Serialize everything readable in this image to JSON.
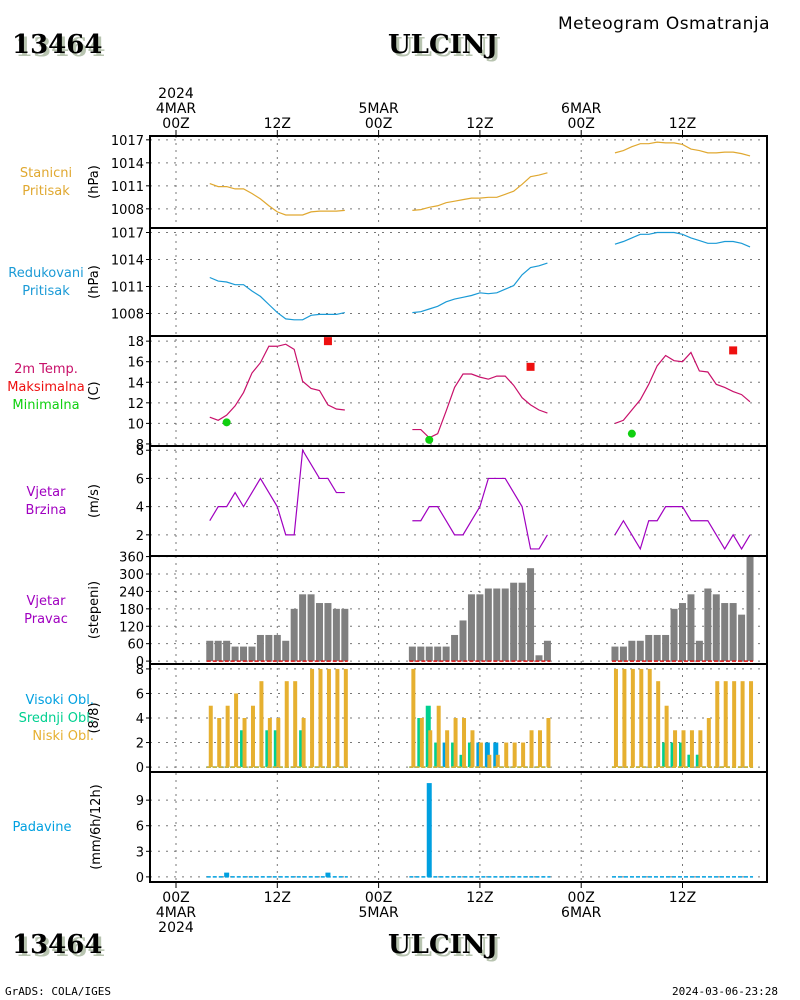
{
  "header": {
    "station_id": "13464",
    "station_name": "ULCINJ",
    "subtitle": "Meteogram Osmatranja"
  },
  "footer": {
    "station_id": "13464",
    "station_name": "ULCINJ",
    "credit": "GrADS: COLA/IGES",
    "timestamp": "2024-03-06-23:28"
  },
  "colors": {
    "station_pressure": "#e0a830",
    "reduced_pressure": "#1a9ad6",
    "temperature": "#c8106a",
    "tmax": "#ee1010",
    "tmin": "#10d010",
    "wind_speed": "#a000c0",
    "wind_dir": "#808080",
    "high_cloud": "#00a0e0",
    "mid_cloud": "#00d090",
    "low_cloud": "#e6b030",
    "precip": "#00a0e0"
  },
  "chart_data": {
    "type": "line",
    "title": "Meteogram Osmatranja",
    "x_unit": "hours since 2024-03-04 00Z",
    "x_range": [
      -3,
      70
    ],
    "top_ticks": [
      {
        "hour": 0,
        "lines": [
          "2024",
          "4MAR",
          "00Z"
        ]
      },
      {
        "hour": 12,
        "lines": [
          "12Z"
        ]
      },
      {
        "hour": 24,
        "lines": [
          "5MAR",
          "00Z"
        ]
      },
      {
        "hour": 36,
        "lines": [
          "12Z"
        ]
      },
      {
        "hour": 48,
        "lines": [
          "6MAR",
          "00Z"
        ]
      },
      {
        "hour": 60,
        "lines": [
          "12Z"
        ]
      }
    ],
    "bottom_ticks": [
      {
        "hour": 0,
        "lines": [
          "00Z",
          "4MAR",
          "2024"
        ]
      },
      {
        "hour": 12,
        "lines": [
          "12Z"
        ]
      },
      {
        "hour": 24,
        "lines": [
          "00Z",
          "5MAR"
        ]
      },
      {
        "hour": 36,
        "lines": [
          "12Z"
        ]
      },
      {
        "hour": 48,
        "lines": [
          "00Z",
          "6MAR"
        ]
      },
      {
        "hour": 60,
        "lines": [
          "12Z"
        ]
      }
    ],
    "hours": [
      [
        4,
        5,
        6,
        7,
        8,
        9,
        10,
        11,
        12,
        13,
        14,
        15,
        16,
        17,
        18,
        19,
        20
      ],
      [
        28,
        29,
        30,
        31,
        32,
        33,
        34,
        35,
        36,
        37,
        38,
        39,
        40,
        41,
        42,
        43,
        44
      ],
      [
        52,
        53,
        54,
        55,
        56,
        57,
        58,
        59,
        60,
        61,
        62,
        63,
        64,
        65,
        66,
        67,
        68
      ]
    ],
    "panels": [
      {
        "id": "station-pressure",
        "labels": [
          "Stanicni",
          "Pritisak"
        ],
        "label_colors": [
          "station_pressure",
          "station_pressure"
        ],
        "ylabel": "(hPa)",
        "ylim": [
          1005.5,
          1017.5
        ],
        "yticks": [
          1008,
          1011,
          1014,
          1017
        ],
        "series": [
          {
            "name": "Stanicni Pritisak",
            "kind": "line",
            "color": "station_pressure",
            "values": [
              [
                1011.3,
                1010.9,
                1010.9,
                1010.6,
                1010.6,
                1010.0,
                1009.3,
                1008.4,
                1007.6,
                1007.2,
                1007.2,
                1007.2,
                1007.6,
                1007.7,
                1007.7,
                1007.7,
                1007.8
              ],
              [
                1007.8,
                1007.9,
                1008.2,
                1008.4,
                1008.8,
                1009.0,
                1009.2,
                1009.4,
                1009.4,
                1009.5,
                1009.5,
                1009.9,
                1010.3,
                1011.2,
                1012.2,
                1012.4,
                1012.7
              ],
              [
                1015.3,
                1015.6,
                1016.1,
                1016.5,
                1016.5,
                1016.7,
                1016.6,
                1016.6,
                1016.4,
                1015.8,
                1015.6,
                1015.3,
                1015.3,
                1015.4,
                1015.4,
                1015.2,
                1014.9
              ]
            ]
          }
        ]
      },
      {
        "id": "reduced-pressure",
        "labels": [
          "Redukovani",
          "Pritisak"
        ],
        "label_colors": [
          "reduced_pressure",
          "reduced_pressure"
        ],
        "ylabel": "(hPa)",
        "ylim": [
          1005.5,
          1017.5
        ],
        "yticks": [
          1008,
          1011,
          1014,
          1017
        ],
        "series": [
          {
            "name": "Redukovani Pritisak",
            "kind": "line",
            "color": "reduced_pressure",
            "values": [
              [
                1012.0,
                1011.6,
                1011.5,
                1011.2,
                1011.2,
                1010.5,
                1009.9,
                1009.0,
                1008.1,
                1007.4,
                1007.3,
                1007.3,
                1007.8,
                1007.9,
                1007.9,
                1007.9,
                1008.1
              ],
              [
                1008.1,
                1008.2,
                1008.5,
                1008.8,
                1009.3,
                1009.6,
                1009.8,
                1010.0,
                1010.3,
                1010.2,
                1010.3,
                1010.7,
                1011.1,
                1012.3,
                1013.1,
                1013.3,
                1013.6
              ],
              [
                1015.7,
                1016.0,
                1016.4,
                1016.8,
                1016.8,
                1017.0,
                1017.0,
                1017.0,
                1016.8,
                1016.4,
                1016.1,
                1015.8,
                1015.8,
                1016.0,
                1016.0,
                1015.8,
                1015.4
              ]
            ]
          }
        ]
      },
      {
        "id": "temperature",
        "labels": [
          "2m Temp.",
          "Maksimalna",
          "Minimalna"
        ],
        "label_colors": [
          "temperature",
          "tmax",
          "tmin"
        ],
        "ylabel": "(C)",
        "ylim": [
          7.8,
          18.5
        ],
        "yticks": [
          8,
          10,
          12,
          14,
          16,
          18
        ],
        "series": [
          {
            "name": "2m Temp.",
            "kind": "line",
            "color": "temperature",
            "values": [
              [
                10.6,
                10.3,
                10.8,
                11.7,
                13.0,
                14.9,
                15.9,
                17.5,
                17.5,
                17.7,
                17.2,
                14.1,
                13.4,
                13.2,
                11.8,
                11.4,
                11.3
              ],
              [
                9.4,
                9.4,
                8.6,
                9.0,
                11.2,
                13.5,
                14.8,
                14.8,
                14.5,
                14.3,
                14.6,
                14.6,
                13.7,
                12.5,
                11.8,
                11.3,
                11.0
              ],
              [
                10.0,
                10.3,
                11.3,
                12.3,
                13.8,
                15.6,
                16.6,
                16.1,
                16.0,
                16.9,
                15.1,
                15.0,
                13.8,
                13.5,
                13.1,
                12.8,
                12.1
              ]
            ]
          },
          {
            "name": "Maksimalna",
            "kind": "square",
            "color": "tmax",
            "points": [
              {
                "hour": 18,
                "value": 18.0
              },
              {
                "hour": 42,
                "value": 15.5
              },
              {
                "hour": 66,
                "value": 17.1
              }
            ]
          },
          {
            "name": "Minimalna",
            "kind": "dot",
            "color": "tmin",
            "points": [
              {
                "hour": 6,
                "value": 10.1
              },
              {
                "hour": 30,
                "value": 8.4
              },
              {
                "hour": 54,
                "value": 9.0
              }
            ]
          }
        ]
      },
      {
        "id": "wind-speed",
        "labels": [
          "Vjetar",
          "Brzina"
        ],
        "label_colors": [
          "wind_speed",
          "wind_speed"
        ],
        "ylabel": "(m/s)",
        "ylim": [
          0.5,
          8.3
        ],
        "yticks": [
          2,
          4,
          6,
          8
        ],
        "series": [
          {
            "name": "Vjetar Brzina",
            "kind": "line",
            "color": "wind_speed",
            "values": [
              [
                3,
                4,
                4,
                5,
                4,
                5,
                6,
                5,
                4,
                2,
                2,
                8,
                7,
                6,
                6,
                5,
                5
              ],
              [
                3,
                3,
                4,
                4,
                3,
                2,
                2,
                3,
                4,
                6,
                6,
                6,
                5,
                4,
                1,
                1,
                2
              ],
              [
                2,
                3,
                2,
                1,
                3,
                3,
                4,
                4,
                4,
                3,
                3,
                3,
                2,
                1,
                2,
                1,
                2
              ]
            ]
          }
        ]
      },
      {
        "id": "wind-direction",
        "labels": [
          "Vjetar",
          "Pravac"
        ],
        "label_colors": [
          "wind_speed",
          "wind_speed"
        ],
        "ylabel": "(stepeni)",
        "ylim": [
          -10,
          362
        ],
        "yticks": [
          0,
          60,
          120,
          180,
          240,
          300,
          360
        ],
        "series": [
          {
            "name": "Vjetar Pravac",
            "kind": "bar",
            "color": "wind_dir",
            "values": [
              [
                70,
                70,
                70,
                50,
                50,
                50,
                90,
                90,
                90,
                70,
                180,
                230,
                230,
                200,
                200,
                180,
                180
              ],
              [
                50,
                50,
                50,
                50,
                50,
                90,
                140,
                230,
                230,
                250,
                250,
                250,
                270,
                270,
                320,
                20,
                70
              ],
              [
                50,
                50,
                70,
                70,
                90,
                90,
                90,
                180,
                200,
                230,
                70,
                250,
                230,
                200,
                200,
                160,
                360
              ]
            ]
          }
        ]
      },
      {
        "id": "clouds",
        "labels": [
          "Visoki Obl.",
          "Srednji Obl.",
          "Niski Obl."
        ],
        "label_colors": [
          "high_cloud",
          "mid_cloud",
          "low_cloud"
        ],
        "ylabel": "(8/8)",
        "ylim": [
          -0.4,
          8.4
        ],
        "yticks": [
          0,
          2,
          4,
          6,
          8
        ],
        "series": [
          {
            "name": "Visoki Obl.",
            "kind": "bar",
            "color": "high_cloud",
            "values": [
              [
                0,
                0,
                0,
                0,
                0,
                0,
                0,
                0,
                0,
                0,
                0,
                0,
                0,
                0,
                0,
                0,
                0
              ],
              [
                0,
                0,
                0,
                0,
                2,
                0,
                0,
                0,
                2,
                2,
                2,
                0,
                0,
                0,
                0,
                0,
                0
              ],
              [
                0,
                0,
                0,
                0,
                0,
                0,
                0,
                1,
                0,
                1,
                1,
                0,
                0,
                0,
                0,
                0,
                0
              ]
            ]
          },
          {
            "name": "Srednji Obl.",
            "kind": "bar",
            "color": "mid_cloud",
            "values": [
              [
                0,
                0,
                0,
                0,
                3,
                0,
                0,
                3,
                3,
                0,
                0,
                3,
                0,
                0,
                0,
                0,
                0
              ],
              [
                0,
                4,
                5,
                2,
                0,
                2,
                1,
                2,
                0,
                0,
                0,
                0,
                0,
                0,
                0,
                0,
                0
              ],
              [
                0,
                0,
                0,
                0,
                0,
                0,
                2,
                2,
                2,
                1,
                1,
                0,
                0,
                0,
                0,
                0,
                0
              ]
            ]
          },
          {
            "name": "Niski Obl.",
            "kind": "bar",
            "color": "low_cloud",
            "values": [
              [
                5,
                4,
                5,
                6,
                4,
                5,
                7,
                4,
                4,
                7,
                7,
                4,
                8,
                8,
                8,
                8,
                8
              ],
              [
                8,
                4,
                3,
                5,
                3,
                4,
                4,
                3,
                2,
                1,
                1,
                2,
                2,
                2,
                3,
                3,
                4
              ],
              [
                8,
                8,
                8,
                8,
                8,
                7,
                5,
                3,
                3,
                3,
                3,
                4,
                7,
                7,
                7,
                7,
                7
              ]
            ]
          }
        ]
      },
      {
        "id": "precipitation",
        "labels": [
          "Padavine"
        ],
        "label_colors": [
          "precip"
        ],
        "ylabel": "(mm/6h/12h)",
        "ylim": [
          -0.6,
          12.3
        ],
        "yticks": [
          0,
          3,
          6,
          9
        ],
        "series": [
          {
            "name": "Padavine",
            "kind": "bar",
            "color": "precip",
            "values": [
              [
                0,
                0,
                0.5,
                0,
                0,
                0,
                0,
                0,
                0,
                0,
                0,
                0,
                0,
                0,
                0.5,
                0,
                0
              ],
              [
                0,
                0,
                11,
                0,
                0,
                0,
                0,
                0,
                0,
                0,
                0,
                0,
                0,
                0,
                0,
                0,
                0
              ],
              [
                0,
                0,
                0,
                0,
                0,
                0,
                0,
                0,
                0,
                0,
                0,
                0,
                0,
                0,
                0,
                0,
                0
              ]
            ]
          }
        ]
      }
    ]
  }
}
